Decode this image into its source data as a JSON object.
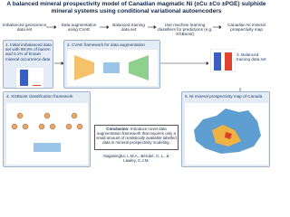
{
  "title": "A balanced mineral prospectivity model of Canadian magmatic Ni (±Cu ±Co ±PGE) sulphide mineral systems using conditional variational autoencoders",
  "flow": [
    "Imbalanced geoscience data set",
    "Data augmentation using CVAE",
    "Balanced training data set",
    "Use machine learning classifiers for predictions (e.g. XGBoost)",
    "Canadian Ni mineral prospectivity map"
  ],
  "panels": {
    "initial": "1. Initial imbalanced data set with 99.9% of barren and 0.1% of known mineral occurrence data",
    "cvae": "2. CVAE framework for data augmentation",
    "balanced": "3. Balanced training data set",
    "xgboost": "4. XGBoost classification framework",
    "map": "5. Ni mineral prospectivity map of Canada"
  },
  "conclusion": {
    "label": "Conclusion:",
    "text": "Introduce novel data augmentation framework that requires only a small amount of realistically available labelled data in mineral prospectivity modeling."
  },
  "authors": "Nagasingha, L.M.A., Bérubé, C. L., & Lawley, C.J.M."
}
